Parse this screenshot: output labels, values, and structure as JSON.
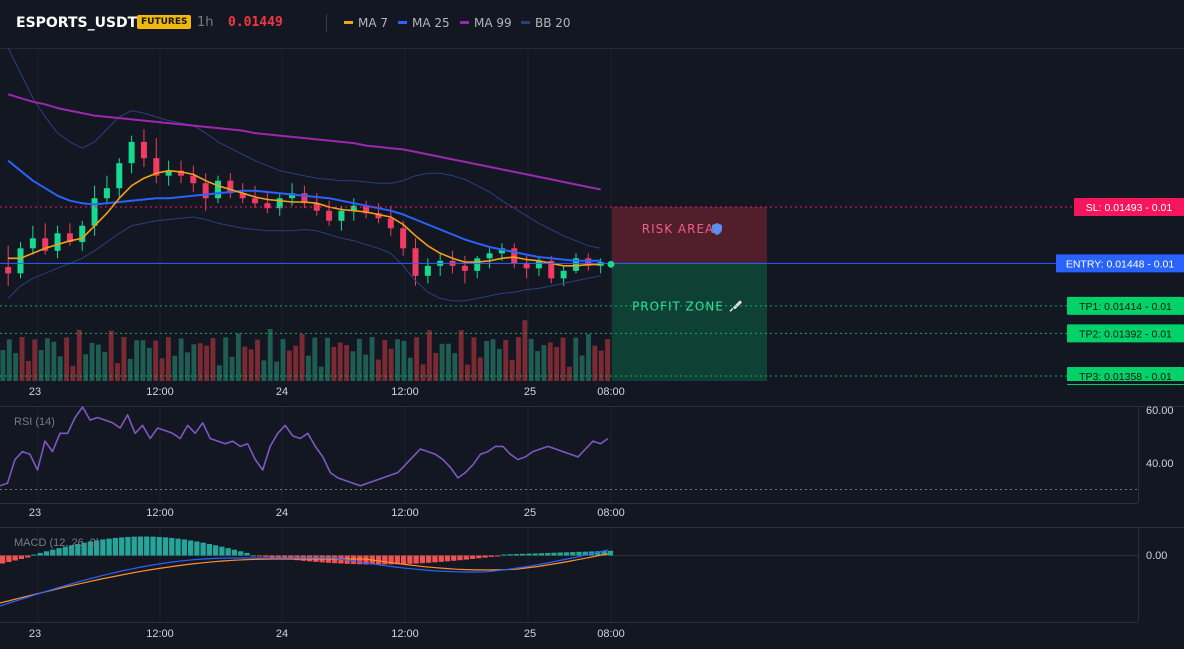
{
  "header": {
    "symbol": "ESPORTS_USDT",
    "badge": "FUTURES",
    "interval": "1h",
    "last_price": "0.01449",
    "legend": [
      {
        "label": "MA 7",
        "color": "#f59f1b"
      },
      {
        "label": "MA 25",
        "color": "#2962ff"
      },
      {
        "label": "MA 99",
        "color": "#9c27b0"
      },
      {
        "label": "BB 20",
        "color": "#2a3f7e"
      }
    ]
  },
  "zones": {
    "risk_label": "RISK AREA",
    "profit_label": "PROFIT ZONE"
  },
  "levels": [
    {
      "label": "SL: 0.01493 - 0.01",
      "color": "#f7155d",
      "text": "#ffffff",
      "style": "dotted",
      "y": 0.01493
    },
    {
      "label": "ENTRY: 0.01448 - 0.01",
      "color": "#2962ff",
      "text": "#ffffff",
      "style": "solid",
      "y": 0.01448
    },
    {
      "label": "TP1: 0.01414 - 0.01",
      "color": "#00d26a",
      "text": "#0b1a12",
      "style": "dotted",
      "y": 0.01414
    },
    {
      "label": "TP2: 0.01392 - 0.01",
      "color": "#00d26a",
      "text": "#0b1a12",
      "style": "dotted",
      "y": 0.01392
    },
    {
      "label": "TP3: 0.01358 - 0.01",
      "color": "#00d26a",
      "text": "#0b1a12",
      "style": "dotted",
      "y": 0.01358
    }
  ],
  "chart_data": [
    {
      "type": "candlestick",
      "title": "",
      "x_ticks": [
        "23",
        "12:00",
        "24",
        "12:00",
        "25",
        "08:00"
      ],
      "ylim": [
        0.01354,
        0.0162
      ],
      "candles": [
        [
          0.01445,
          0.01462,
          0.0143,
          0.0144
        ],
        [
          0.0144,
          0.01465,
          0.01436,
          0.0146
        ],
        [
          0.0146,
          0.01478,
          0.01455,
          0.01468
        ],
        [
          0.01468,
          0.0148,
          0.01455,
          0.01458
        ],
        [
          0.01458,
          0.01478,
          0.01452,
          0.01472
        ],
        [
          0.01472,
          0.0148,
          0.01462,
          0.01465
        ],
        [
          0.01465,
          0.01482,
          0.01458,
          0.01478
        ],
        [
          0.01478,
          0.0151,
          0.0147,
          0.015
        ],
        [
          0.015,
          0.01518,
          0.01495,
          0.01508
        ],
        [
          0.01508,
          0.01532,
          0.015,
          0.01528
        ],
        [
          0.01528,
          0.0155,
          0.0152,
          0.01545
        ],
        [
          0.01545,
          0.01555,
          0.01525,
          0.01532
        ],
        [
          0.01532,
          0.01548,
          0.01512,
          0.01518
        ],
        [
          0.01518,
          0.0153,
          0.0151,
          0.01522
        ],
        [
          0.01522,
          0.0153,
          0.01512,
          0.01518
        ],
        [
          0.01518,
          0.01526,
          0.01505,
          0.01512
        ],
        [
          0.01512,
          0.0152,
          0.0149,
          0.015
        ],
        [
          0.015,
          0.01518,
          0.01496,
          0.01514
        ],
        [
          0.01514,
          0.0152,
          0.015,
          0.01504
        ],
        [
          0.01504,
          0.01512,
          0.01496,
          0.015
        ],
        [
          0.015,
          0.0151,
          0.01492,
          0.01496
        ],
        [
          0.01496,
          0.01506,
          0.01488,
          0.01492
        ],
        [
          0.01492,
          0.01504,
          0.01486,
          0.015
        ],
        [
          0.015,
          0.01512,
          0.01494,
          0.01504
        ],
        [
          0.01504,
          0.0151,
          0.01492,
          0.01496
        ],
        [
          0.01496,
          0.01504,
          0.01486,
          0.0149
        ],
        [
          0.0149,
          0.01498,
          0.01478,
          0.01482
        ],
        [
          0.01482,
          0.01494,
          0.01474,
          0.0149
        ],
        [
          0.0149,
          0.015,
          0.01482,
          0.01494
        ],
        [
          0.01494,
          0.01498,
          0.01484,
          0.01488
        ],
        [
          0.01488,
          0.01496,
          0.0148,
          0.01484
        ],
        [
          0.01484,
          0.01494,
          0.0147,
          0.01476
        ],
        [
          0.01476,
          0.01482,
          0.01454,
          0.0146
        ],
        [
          0.0146,
          0.01468,
          0.0143,
          0.01438
        ],
        [
          0.01438,
          0.01452,
          0.01432,
          0.01446
        ],
        [
          0.01446,
          0.01456,
          0.01438,
          0.0145
        ],
        [
          0.0145,
          0.01458,
          0.0144,
          0.01446
        ],
        [
          0.01446,
          0.01454,
          0.01432,
          0.01442
        ],
        [
          0.01442,
          0.01454,
          0.01436,
          0.01452
        ],
        [
          0.01452,
          0.0146,
          0.01444,
          0.01456
        ],
        [
          0.01456,
          0.01464,
          0.0145,
          0.0146
        ],
        [
          0.0146,
          0.01464,
          0.01444,
          0.01448
        ],
        [
          0.01448,
          0.01454,
          0.01436,
          0.01444
        ],
        [
          0.01444,
          0.01454,
          0.01438,
          0.0145
        ],
        [
          0.0145,
          0.01454,
          0.01432,
          0.01436
        ],
        [
          0.01436,
          0.01446,
          0.0143,
          0.01442
        ],
        [
          0.01442,
          0.01456,
          0.0144,
          0.01452
        ],
        [
          0.01452,
          0.01456,
          0.01442,
          0.01446
        ],
        [
          0.01446,
          0.01452,
          0.0144,
          0.01449
        ]
      ],
      "ma7": [
        0.01452,
        0.01452,
        0.01456,
        0.0146,
        0.01463,
        0.01466,
        0.01468,
        0.01478,
        0.01488,
        0.015,
        0.0151,
        0.01516,
        0.0152,
        0.01522,
        0.01521,
        0.01519,
        0.01514,
        0.0151,
        0.01507,
        0.01504,
        0.01501,
        0.01499,
        0.01498,
        0.01497,
        0.01497,
        0.01496,
        0.01493,
        0.01491,
        0.0149,
        0.01489,
        0.01487,
        0.01485,
        0.01479,
        0.0147,
        0.01462,
        0.01456,
        0.01452,
        0.01449,
        0.01449,
        0.0145,
        0.01452,
        0.01453,
        0.01451,
        0.0145,
        0.01448,
        0.01446,
        0.01446,
        0.01447,
        0.01447
      ],
      "ma25": [
        0.0153,
        0.01522,
        0.01514,
        0.01508,
        0.01502,
        0.01498,
        0.01496,
        0.01495,
        0.01496,
        0.01497,
        0.01498,
        0.01499,
        0.015,
        0.015,
        0.01501,
        0.01502,
        0.01503,
        0.01504,
        0.01505,
        0.01506,
        0.01506,
        0.01505,
        0.01504,
        0.01503,
        0.01502,
        0.01501,
        0.015,
        0.01498,
        0.01496,
        0.01494,
        0.01492,
        0.0149,
        0.01487,
        0.01483,
        0.01479,
        0.01475,
        0.01471,
        0.01467,
        0.01464,
        0.01461,
        0.01459,
        0.01457,
        0.01455,
        0.01453,
        0.01452,
        0.01451,
        0.0145,
        0.0145,
        0.0145
      ],
      "ma99": [
        0.01583,
        0.0158,
        0.01577,
        0.01575,
        0.01572,
        0.0157,
        0.01568,
        0.01566,
        0.01565,
        0.01564,
        0.01563,
        0.01562,
        0.01561,
        0.0156,
        0.01559,
        0.01558,
        0.01557,
        0.01556,
        0.01555,
        0.01554,
        0.01552,
        0.01551,
        0.0155,
        0.01549,
        0.01548,
        0.01547,
        0.01546,
        0.01545,
        0.01544,
        0.01542,
        0.01541,
        0.0154,
        0.01539,
        0.01537,
        0.01535,
        0.01533,
        0.01531,
        0.01529,
        0.01527,
        0.01525,
        0.01523,
        0.01521,
        0.01519,
        0.01517,
        0.01515,
        0.01513,
        0.01511,
        0.01509,
        0.01507
      ],
      "bb_upper": [
        0.0162,
        0.016,
        0.0158,
        0.01565,
        0.01552,
        0.01545,
        0.0154,
        0.01545,
        0.01555,
        0.01565,
        0.0157,
        0.01568,
        0.01565,
        0.01562,
        0.0156,
        0.01558,
        0.01552,
        0.01545,
        0.0154,
        0.01535,
        0.0153,
        0.01526,
        0.01522,
        0.0152,
        0.01518,
        0.01516,
        0.01515,
        0.01514,
        0.01514,
        0.01513,
        0.01512,
        0.01512,
        0.01514,
        0.01518,
        0.0152,
        0.0152,
        0.01518,
        0.01515,
        0.0151,
        0.01505,
        0.01498,
        0.01492,
        0.01486,
        0.0148,
        0.01475,
        0.0147,
        0.01466,
        0.01462,
        0.0146
      ],
      "bb_lower": [
        0.0142,
        0.0143,
        0.01436,
        0.0144,
        0.01444,
        0.01448,
        0.01452,
        0.01458,
        0.01465,
        0.01472,
        0.01478,
        0.0148,
        0.01482,
        0.01483,
        0.01484,
        0.01485,
        0.01483,
        0.0148,
        0.01478,
        0.01476,
        0.01475,
        0.01474,
        0.01474,
        0.01474,
        0.01475,
        0.01474,
        0.01471,
        0.01468,
        0.01466,
        0.01463,
        0.0146,
        0.01456,
        0.01446,
        0.01434,
        0.01425,
        0.0142,
        0.01418,
        0.01418,
        0.0142,
        0.01422,
        0.01424,
        0.01425,
        0.01427,
        0.01428,
        0.0143,
        0.01432,
        0.01434,
        0.01436,
        0.01438
      ],
      "volume_bars": 96
    },
    {
      "type": "line",
      "title": "RSI (14)",
      "x_ticks": [
        "23",
        "12:00",
        "24",
        "12:00",
        "25",
        "08:00"
      ],
      "y_ticks": [
        "60.00",
        "40.00"
      ],
      "ylim": [
        28,
        60
      ],
      "values": [
        30,
        31,
        40,
        43,
        42,
        36,
        47,
        43,
        50,
        50,
        56,
        60,
        55,
        56,
        55,
        54,
        52,
        57,
        50,
        53,
        48,
        52,
        51,
        50,
        48,
        53,
        50,
        54,
        48,
        47,
        46,
        47,
        45,
        46,
        40,
        36,
        45,
        50,
        53,
        49,
        48,
        50,
        45,
        41,
        35,
        33,
        32,
        31,
        30,
        31,
        32,
        33,
        34,
        35,
        38,
        41,
        44,
        43,
        42,
        40,
        37,
        33,
        35,
        38,
        42,
        43,
        45,
        45,
        42,
        40,
        41,
        43,
        44,
        45,
        44,
        43,
        42,
        41,
        44,
        47,
        46,
        48
      ]
    },
    {
      "type": "line",
      "title": "MACD (12, 26, 9)",
      "x_ticks": [
        "23",
        "12:00",
        "24",
        "12:00",
        "25",
        "08:00"
      ],
      "y_ticks": [
        "0.00"
      ],
      "ylim": [
        -0.0005,
        0.00016
      ]
    }
  ]
}
